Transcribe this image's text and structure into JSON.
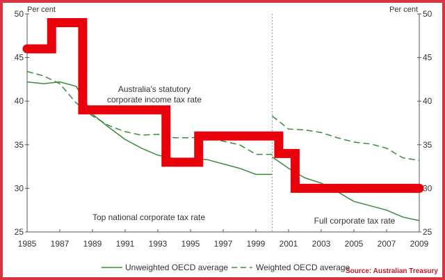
{
  "chart_data": {
    "type": "line",
    "y_unit_left": "Per cent",
    "y_unit_right": "Per cent",
    "ylim": [
      25,
      50
    ],
    "yticks": [
      25,
      30,
      35,
      40,
      45,
      50
    ],
    "xlim": [
      1985,
      2009
    ],
    "xticks": [
      1985,
      1987,
      1989,
      1991,
      1993,
      1995,
      1997,
      1999,
      2001,
      2003,
      2005,
      2007,
      2009
    ],
    "break_year": 2000,
    "series": [
      {
        "name": "Australia's statutory corporate income tax rate",
        "style": "step",
        "color": "#e8000b",
        "steps": [
          [
            1985,
            46
          ],
          [
            1986.5,
            49
          ],
          [
            1988.4,
            39
          ],
          [
            1993.5,
            33
          ],
          [
            1995.5,
            36
          ],
          [
            2000.4,
            34
          ],
          [
            2001.4,
            30
          ],
          [
            2009,
            30
          ]
        ]
      },
      {
        "name": "Unweighted OECD average",
        "style": "solid",
        "color": "#3a8a3a",
        "segments": [
          {
            "x": [
              1985,
              1986,
              1987,
              1988,
              1989,
              1990,
              1991,
              1992,
              1993,
              1994,
              1995,
              1996,
              1997,
              1998,
              1999,
              2000
            ],
            "y": [
              42.2,
              42.0,
              42.2,
              41.7,
              38.5,
              37.0,
              35.6,
              34.6,
              33.8,
              33.4,
              33.4,
              33.3,
              32.8,
              32.3,
              31.6,
              31.6
            ]
          },
          {
            "x": [
              2000,
              2001,
              2002,
              2003,
              2004,
              2005,
              2006,
              2007,
              2008,
              2009
            ],
            "y": [
              33.6,
              32.3,
              31.2,
              30.6,
              29.6,
              28.5,
              28.0,
              27.5,
              26.7,
              26.3
            ]
          }
        ]
      },
      {
        "name": "Weighted OECD average",
        "style": "dashed",
        "color": "#3a8a3a",
        "segments": [
          {
            "x": [
              1985,
              1986,
              1987,
              1988,
              1989,
              1990,
              1991,
              1992,
              1993,
              1994,
              1995,
              1996,
              1997,
              1998,
              1999,
              2000
            ],
            "y": [
              43.4,
              42.9,
              42.0,
              39.8,
              38.3,
              37.2,
              36.5,
              36.1,
              36.2,
              35.8,
              35.8,
              35.9,
              35.4,
              35.0,
              33.9,
              33.9
            ]
          },
          {
            "x": [
              2000,
              2001,
              2002,
              2003,
              2004,
              2005,
              2006,
              2007,
              2008,
              2009
            ],
            "y": [
              38.3,
              36.8,
              36.7,
              36.4,
              35.8,
              35.3,
              35.1,
              34.6,
              33.5,
              33.2
            ]
          }
        ]
      }
    ],
    "annotations": {
      "aus_line1": "Australia's statutory",
      "aus_line2": "corporate income tax rate",
      "left_period": "Top national corporate tax rate",
      "right_period": "Full corporate tax rate"
    },
    "legend": {
      "placement": "bottom",
      "items": [
        "Unweighted OECD average",
        "Weighted OECD average"
      ]
    },
    "source": "Source: Australian Treasury"
  }
}
